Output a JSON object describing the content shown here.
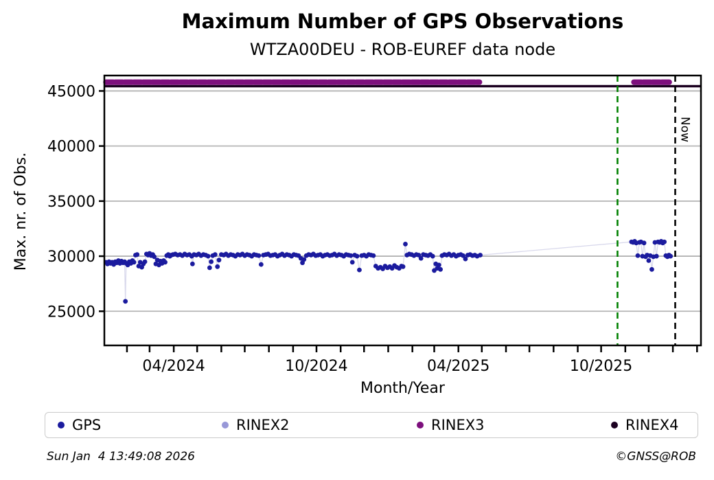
{
  "title": "Maximum Number of GPS Observations",
  "subtitle": "WTZA00DEU - ROB-EUREF data node",
  "x_axis_label": "Month/Year",
  "y_axis_label": "Max. nr. of Obs.",
  "annotations": {
    "now_label": "Now"
  },
  "footer": {
    "timestamp": "Sun Jan  4 13:49:08 2026",
    "credit": "©GNSS@ROB"
  },
  "legend": {
    "items": [
      {
        "label": "GPS",
        "color": "#1b1b9e"
      },
      {
        "label": "RINEX2",
        "color": "#9898d8"
      },
      {
        "label": "RINEX3",
        "color": "#7d0f7d"
      },
      {
        "label": "RINEX4",
        "color": "#1c0121"
      }
    ]
  },
  "chart_data": {
    "type": "scatter",
    "title": "Maximum Number of GPS Observations",
    "subtitle": "WTZA00DEU - ROB-EUREF data node",
    "xlabel": "Month/Year",
    "ylabel": "Max. nr. of Obs.",
    "grid": true,
    "x_unit": "days since 2024-01-01",
    "xlim_days": [
      2,
      767
    ],
    "ylim": [
      21900,
      46400
    ],
    "y_ticks": [
      25000,
      30000,
      35000,
      40000,
      45000
    ],
    "x_major_ticks": [
      {
        "day": 91,
        "label": "04/2024"
      },
      {
        "day": 274,
        "label": "10/2024"
      },
      {
        "day": 456,
        "label": "04/2025"
      },
      {
        "day": 639,
        "label": "10/2025"
      }
    ],
    "x_minor_tick_days": [
      31,
      60,
      91,
      121,
      152,
      182,
      213,
      244,
      274,
      305,
      335,
      366,
      397,
      425,
      456,
      486,
      517,
      547,
      578,
      609,
      639,
      670,
      700,
      731,
      762
    ],
    "event_line": {
      "day": 660,
      "approx_date": "2025-10-22",
      "color": "#008000",
      "style": "dashed"
    },
    "now_line": {
      "day": 734,
      "approx_date": "2026-01-04",
      "color": "#000000",
      "style": "dashed",
      "label": "Now"
    },
    "series": {
      "gps": {
        "color": "#1b1b9e",
        "line_color": "#d9d9ec",
        "points": [
          [
            4,
            29450
          ],
          [
            6,
            29300
          ],
          [
            8,
            29500
          ],
          [
            10,
            29350
          ],
          [
            12,
            29450
          ],
          [
            14,
            29250
          ],
          [
            16,
            29500
          ],
          [
            18,
            29400
          ],
          [
            20,
            29600
          ],
          [
            22,
            29350
          ],
          [
            24,
            29550
          ],
          [
            26,
            29400
          ],
          [
            28,
            29500
          ],
          [
            29,
            25900
          ],
          [
            30,
            29350
          ],
          [
            32,
            29200
          ],
          [
            34,
            29500
          ],
          [
            36,
            29350
          ],
          [
            38,
            29600
          ],
          [
            40,
            29450
          ],
          [
            42,
            30100
          ],
          [
            44,
            30150
          ],
          [
            46,
            29100
          ],
          [
            48,
            29450
          ],
          [
            50,
            29000
          ],
          [
            52,
            29300
          ],
          [
            54,
            29500
          ],
          [
            56,
            30200
          ],
          [
            58,
            30100
          ],
          [
            60,
            30250
          ],
          [
            62,
            30050
          ],
          [
            64,
            30150
          ],
          [
            66,
            29950
          ],
          [
            68,
            29300
          ],
          [
            70,
            29650
          ],
          [
            72,
            29200
          ],
          [
            74,
            29550
          ],
          [
            76,
            29350
          ],
          [
            78,
            29600
          ],
          [
            80,
            29450
          ],
          [
            82,
            30050
          ],
          [
            84,
            30150
          ],
          [
            86,
            30000
          ],
          [
            88,
            30100
          ],
          [
            90,
            30150
          ],
          [
            93,
            30200
          ],
          [
            96,
            30100
          ],
          [
            99,
            30150
          ],
          [
            102,
            30050
          ],
          [
            105,
            30200
          ],
          [
            108,
            30100
          ],
          [
            111,
            30150
          ],
          [
            114,
            30000
          ],
          [
            115,
            29300
          ],
          [
            117,
            30150
          ],
          [
            120,
            30100
          ],
          [
            123,
            30200
          ],
          [
            126,
            30050
          ],
          [
            129,
            30150
          ],
          [
            132,
            30100
          ],
          [
            135,
            30000
          ],
          [
            137,
            28950
          ],
          [
            139,
            29500
          ],
          [
            141,
            30050
          ],
          [
            144,
            30150
          ],
          [
            147,
            29050
          ],
          [
            149,
            29650
          ],
          [
            152,
            30150
          ],
          [
            155,
            30100
          ],
          [
            158,
            30200
          ],
          [
            161,
            30050
          ],
          [
            164,
            30150
          ],
          [
            167,
            30100
          ],
          [
            170,
            30000
          ],
          [
            173,
            30150
          ],
          [
            176,
            30100
          ],
          [
            179,
            30200
          ],
          [
            182,
            30050
          ],
          [
            185,
            30150
          ],
          [
            188,
            30100
          ],
          [
            191,
            30000
          ],
          [
            194,
            30150
          ],
          [
            197,
            30100
          ],
          [
            200,
            30050
          ],
          [
            203,
            29250
          ],
          [
            206,
            30100
          ],
          [
            209,
            30150
          ],
          [
            212,
            30200
          ],
          [
            215,
            30050
          ],
          [
            218,
            30100
          ],
          [
            221,
            30150
          ],
          [
            224,
            30000
          ],
          [
            227,
            30100
          ],
          [
            230,
            30200
          ],
          [
            233,
            30050
          ],
          [
            236,
            30150
          ],
          [
            239,
            30100
          ],
          [
            242,
            30000
          ],
          [
            245,
            30150
          ],
          [
            248,
            30100
          ],
          [
            251,
            30050
          ],
          [
            254,
            29800
          ],
          [
            256,
            29400
          ],
          [
            258,
            29700
          ],
          [
            261,
            30050
          ],
          [
            264,
            30150
          ],
          [
            267,
            30100
          ],
          [
            270,
            30200
          ],
          [
            273,
            30050
          ],
          [
            276,
            30100
          ],
          [
            279,
            30150
          ],
          [
            282,
            30000
          ],
          [
            285,
            30100
          ],
          [
            288,
            30150
          ],
          [
            291,
            30050
          ],
          [
            294,
            30100
          ],
          [
            297,
            30200
          ],
          [
            300,
            30050
          ],
          [
            303,
            30150
          ],
          [
            306,
            30100
          ],
          [
            309,
            30000
          ],
          [
            312,
            30150
          ],
          [
            315,
            30100
          ],
          [
            318,
            30050
          ],
          [
            320,
            29450
          ],
          [
            323,
            30100
          ],
          [
            326,
            30000
          ],
          [
            329,
            28750
          ],
          [
            332,
            30050
          ],
          [
            335,
            30100
          ],
          [
            338,
            30000
          ],
          [
            341,
            30150
          ],
          [
            344,
            30100
          ],
          [
            347,
            30050
          ],
          [
            350,
            29100
          ],
          [
            353,
            28900
          ],
          [
            356,
            29000
          ],
          [
            359,
            28850
          ],
          [
            362,
            29100
          ],
          [
            365,
            28950
          ],
          [
            368,
            29050
          ],
          [
            371,
            28900
          ],
          [
            374,
            29150
          ],
          [
            377,
            29000
          ],
          [
            380,
            28900
          ],
          [
            383,
            29100
          ],
          [
            385,
            29050
          ],
          [
            388,
            31100
          ],
          [
            390,
            30100
          ],
          [
            393,
            30200
          ],
          [
            396,
            30150
          ],
          [
            399,
            30050
          ],
          [
            402,
            30150
          ],
          [
            405,
            30100
          ],
          [
            408,
            29800
          ],
          [
            411,
            30150
          ],
          [
            414,
            30100
          ],
          [
            417,
            30050
          ],
          [
            420,
            30150
          ],
          [
            423,
            30000
          ],
          [
            425,
            28700
          ],
          [
            427,
            29300
          ],
          [
            429,
            28900
          ],
          [
            431,
            29200
          ],
          [
            433,
            28800
          ],
          [
            435,
            30050
          ],
          [
            438,
            30150
          ],
          [
            441,
            30100
          ],
          [
            444,
            30200
          ],
          [
            447,
            30050
          ],
          [
            450,
            30150
          ],
          [
            453,
            30000
          ],
          [
            456,
            30100
          ],
          [
            459,
            30150
          ],
          [
            462,
            30050
          ],
          [
            465,
            29750
          ],
          [
            468,
            30100
          ],
          [
            471,
            30150
          ],
          [
            474,
            30050
          ],
          [
            477,
            30100
          ],
          [
            480,
            30000
          ],
          [
            484,
            30100
          ],
          [
            678,
            31300
          ],
          [
            680,
            31250
          ],
          [
            682,
            31350
          ],
          [
            684,
            31200
          ],
          [
            686,
            30050
          ],
          [
            688,
            31250
          ],
          [
            690,
            31300
          ],
          [
            692,
            30000
          ],
          [
            694,
            31200
          ],
          [
            696,
            29950
          ],
          [
            698,
            30100
          ],
          [
            700,
            29600
          ],
          [
            702,
            30050
          ],
          [
            704,
            28800
          ],
          [
            706,
            29950
          ],
          [
            708,
            31250
          ],
          [
            710,
            30000
          ],
          [
            712,
            31300
          ],
          [
            714,
            31250
          ],
          [
            716,
            31350
          ],
          [
            718,
            31200
          ],
          [
            720,
            31300
          ],
          [
            722,
            30050
          ],
          [
            724,
            29950
          ],
          [
            726,
            30100
          ],
          [
            728,
            30000
          ]
        ]
      },
      "rinex2": {
        "color": "#9898d8",
        "points": []
      },
      "rinex3": {
        "color": "#7d0f7d",
        "value": 45800,
        "segments_days": [
          [
            4,
            483
          ],
          [
            681,
            727
          ]
        ]
      },
      "rinex4": {
        "color": "#1c0121",
        "value": 45430,
        "segments_days": [
          [
            2,
            767
          ]
        ]
      }
    }
  }
}
